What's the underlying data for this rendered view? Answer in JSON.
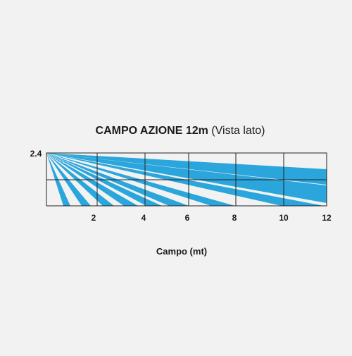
{
  "title": {
    "bold": "CAMPO AZIONE 12m",
    "normal": "(Vista lato)"
  },
  "y_label": "2.4",
  "x_ticks": [
    "2",
    "4",
    "6",
    "8",
    "10",
    "12"
  ],
  "x_axis_label": "Campo (mt)"
}
